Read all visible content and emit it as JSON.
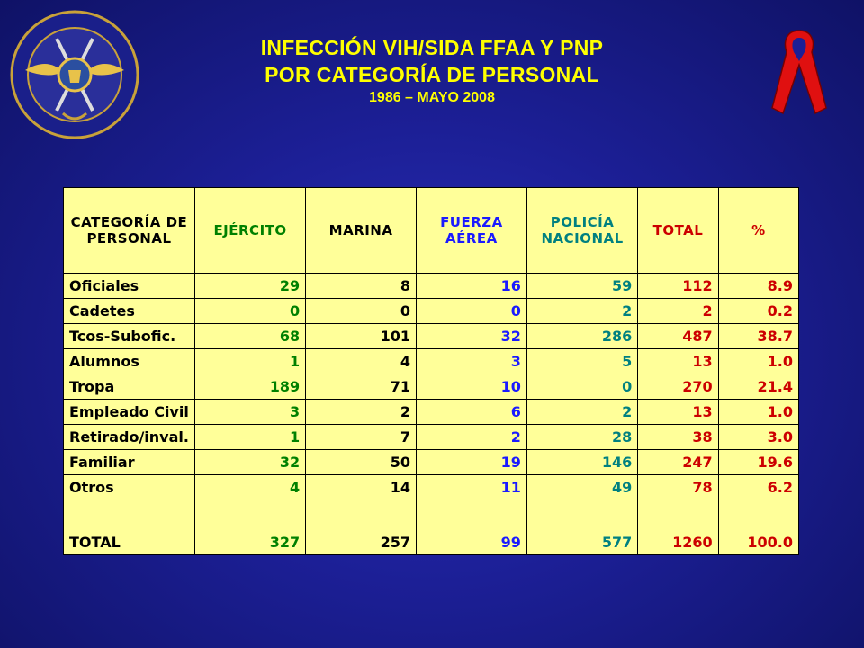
{
  "title": {
    "line1": "INFECCIÓN VIH/SIDA FFAA Y PNP",
    "line2": "POR CATEGORÍA DE PERSONAL",
    "line3": "1986 – MAYO 2008"
  },
  "icons": {
    "logo": "military-police-seal-logo",
    "ribbon": "red-awareness-ribbon-icon"
  },
  "colors": {
    "ejercito": "#008000",
    "marina": "#000000",
    "fuerza_aerea": "#1a1aff",
    "policia": "#008080",
    "total": "#cc0000",
    "pct": "#cc0000",
    "table_bg": "#ffff99",
    "title": "#ffff00"
  },
  "table": {
    "headers": {
      "categoria_1": "CATEGORÍA DE",
      "categoria_2": "PERSONAL",
      "ejercito": "EJÉRCITO",
      "marina": "MARINA",
      "fuerza_1": "FUERZA",
      "fuerza_2": "AÉREA",
      "policia_1": "POLICÍA",
      "policia_2": "NACIONAL",
      "total": "TOTAL",
      "pct": "%"
    },
    "rows": [
      {
        "cat": "Oficiales",
        "ejercito": "29",
        "marina": "8",
        "fuerza": "16",
        "policia": "59",
        "total": "112",
        "pct": "8.9"
      },
      {
        "cat": "Cadetes",
        "ejercito": "0",
        "marina": "0",
        "fuerza": "0",
        "policia": "2",
        "total": "2",
        "pct": "0.2"
      },
      {
        "cat": "Tcos-Subofic.",
        "ejercito": "68",
        "marina": "101",
        "fuerza": "32",
        "policia": "286",
        "total": "487",
        "pct": "38.7"
      },
      {
        "cat": "Alumnos",
        "ejercito": "1",
        "marina": "4",
        "fuerza": "3",
        "policia": "5",
        "total": "13",
        "pct": "1.0"
      },
      {
        "cat": "Tropa",
        "ejercito": "189",
        "marina": "71",
        "fuerza": "10",
        "policia": "0",
        "total": "270",
        "pct": "21.4"
      },
      {
        "cat": "Empleado Civil",
        "ejercito": "3",
        "marina": "2",
        "fuerza": "6",
        "policia": "2",
        "total": "13",
        "pct": "1.0"
      },
      {
        "cat": "Retirado/inval.",
        "ejercito": "1",
        "marina": "7",
        "fuerza": "2",
        "policia": "28",
        "total": "38",
        "pct": "3.0"
      },
      {
        "cat": "Familiar",
        "ejercito": "32",
        "marina": "50",
        "fuerza": "19",
        "policia": "146",
        "total": "247",
        "pct": "19.6"
      },
      {
        "cat": "Otros",
        "ejercito": "4",
        "marina": "14",
        "fuerza": "11",
        "policia": "49",
        "total": "78",
        "pct": "6.2"
      }
    ],
    "total_row": {
      "cat": "TOTAL",
      "ejercito": "327",
      "marina": "257",
      "fuerza": "99",
      "policia": "577",
      "total": "1260",
      "pct": "100.0"
    }
  }
}
